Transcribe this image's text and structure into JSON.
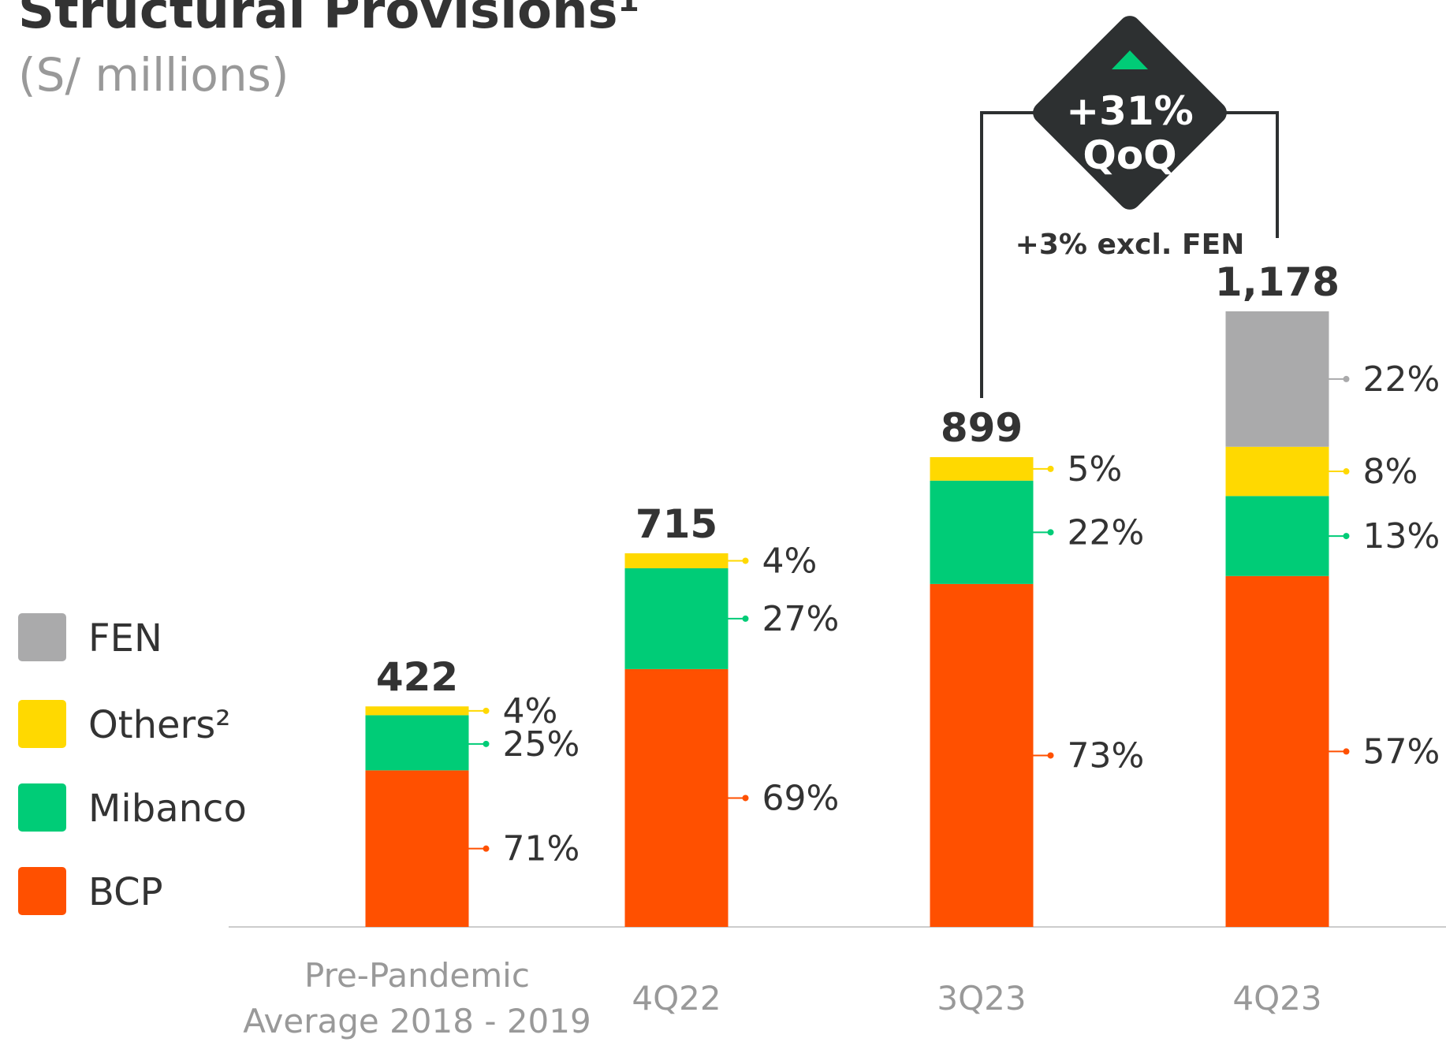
{
  "chart_data": {
    "type": "stacked_bar",
    "title": "Structural Provisions¹",
    "subtitle": "(S/ millions)",
    "categories": [
      "Pre-Pandemic\nAverage 2018 - 2019",
      "4Q22",
      "3Q23",
      "4Q23"
    ],
    "totals": {
      "values": [
        422,
        715,
        899,
        1178
      ],
      "value_labels": [
        "422",
        "715",
        "899",
        "1,178"
      ]
    },
    "series": [
      {
        "name": "BCP",
        "color": "#ff5000",
        "values": [
          71,
          69,
          73,
          57
        ],
        "value_labels": [
          "71%",
          "69%",
          "73%",
          "57%"
        ]
      },
      {
        "name": "Mibanco",
        "color": "#00cc77",
        "values": [
          25,
          27,
          22,
          13
        ],
        "value_labels": [
          "25%",
          "27%",
          "22%",
          "13%"
        ]
      },
      {
        "name": "Others²",
        "color": "#ffd900",
        "values": [
          4,
          4,
          5,
          8
        ],
        "value_labels": [
          "4%",
          "4%",
          "5%",
          "8%"
        ]
      },
      {
        "name": "FEN",
        "color": "#aaaaab",
        "values": [
          null,
          null,
          null,
          22
        ],
        "value_labels": [
          null,
          null,
          null,
          "22%"
        ]
      }
    ],
    "annotations": {
      "change": "+31%",
      "period": "QoQ",
      "note": "+3% excl. FEN"
    }
  }
}
